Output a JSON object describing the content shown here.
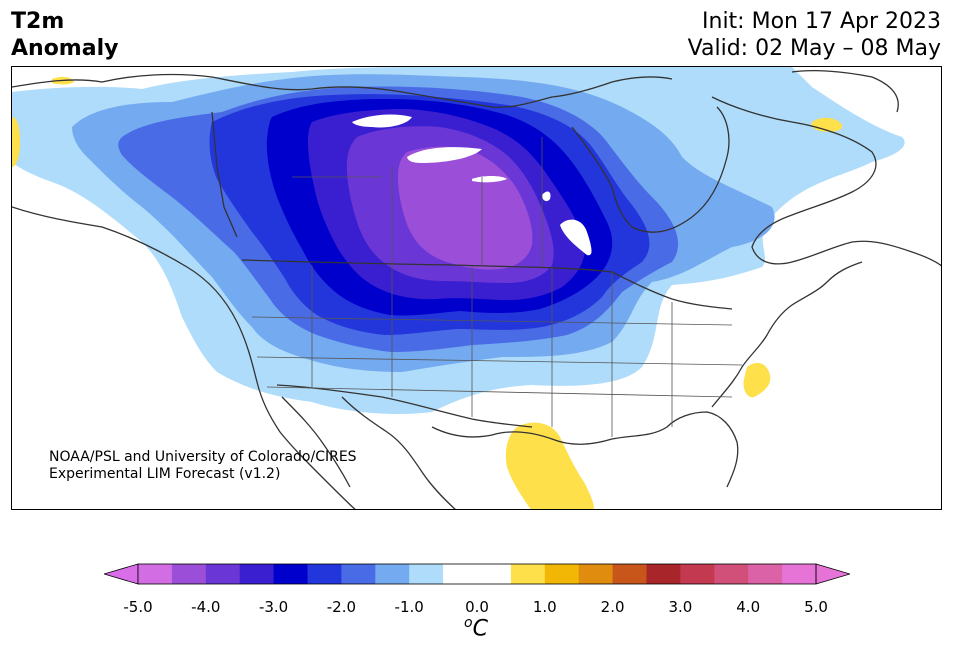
{
  "title": {
    "left_line1": "T2m",
    "left_line2": "Anomaly",
    "right_line1": "Init: Mon 17 Apr 2023",
    "right_line2": "Valid: 02 May – 08 May"
  },
  "credit": {
    "line1": "NOAA/PSL and University of Colorado/CIRES",
    "line2": "Experimental LIM Forecast (v1.2)"
  },
  "colorbar": {
    "ticks": [
      "-5.0",
      "-4.0",
      "-3.0",
      "-2.0",
      "-1.0",
      "0.0",
      "1.0",
      "2.0",
      "3.0",
      "4.0",
      "5.0"
    ],
    "units_base": "C",
    "units_sup": "o",
    "under_color": "#d86fe8",
    "over_color": "#e673d6",
    "colors": [
      "#d26de3",
      "#9b4fd9",
      "#6a37d6",
      "#3a1fd0",
      "#0000cd",
      "#2236db",
      "#4a6be6",
      "#74aaf0",
      "#aedcfa",
      "#ffffff",
      "#ffffff",
      "#fde04a",
      "#f2b705",
      "#e08c0e",
      "#c8561a",
      "#a8262a",
      "#c33a50",
      "#d0507a",
      "#dc62a8",
      "#e673d6"
    ]
  },
  "map": {
    "region": "North America",
    "variable": "2 m temperature anomaly",
    "colors": {
      "land_line": "#333333",
      "anom_neg_05": "#aedcfa",
      "anom_neg_10": "#74aaf0",
      "anom_neg_15": "#4a6be6",
      "anom_neg_20": "#2236db",
      "anom_neg_25": "#0000cd",
      "anom_neg_30": "#3a1fd0",
      "anom_neg_35": "#6a37d6",
      "anom_neg_40": "#9b4fd9",
      "anom_pos_05": "#fde04a"
    }
  }
}
